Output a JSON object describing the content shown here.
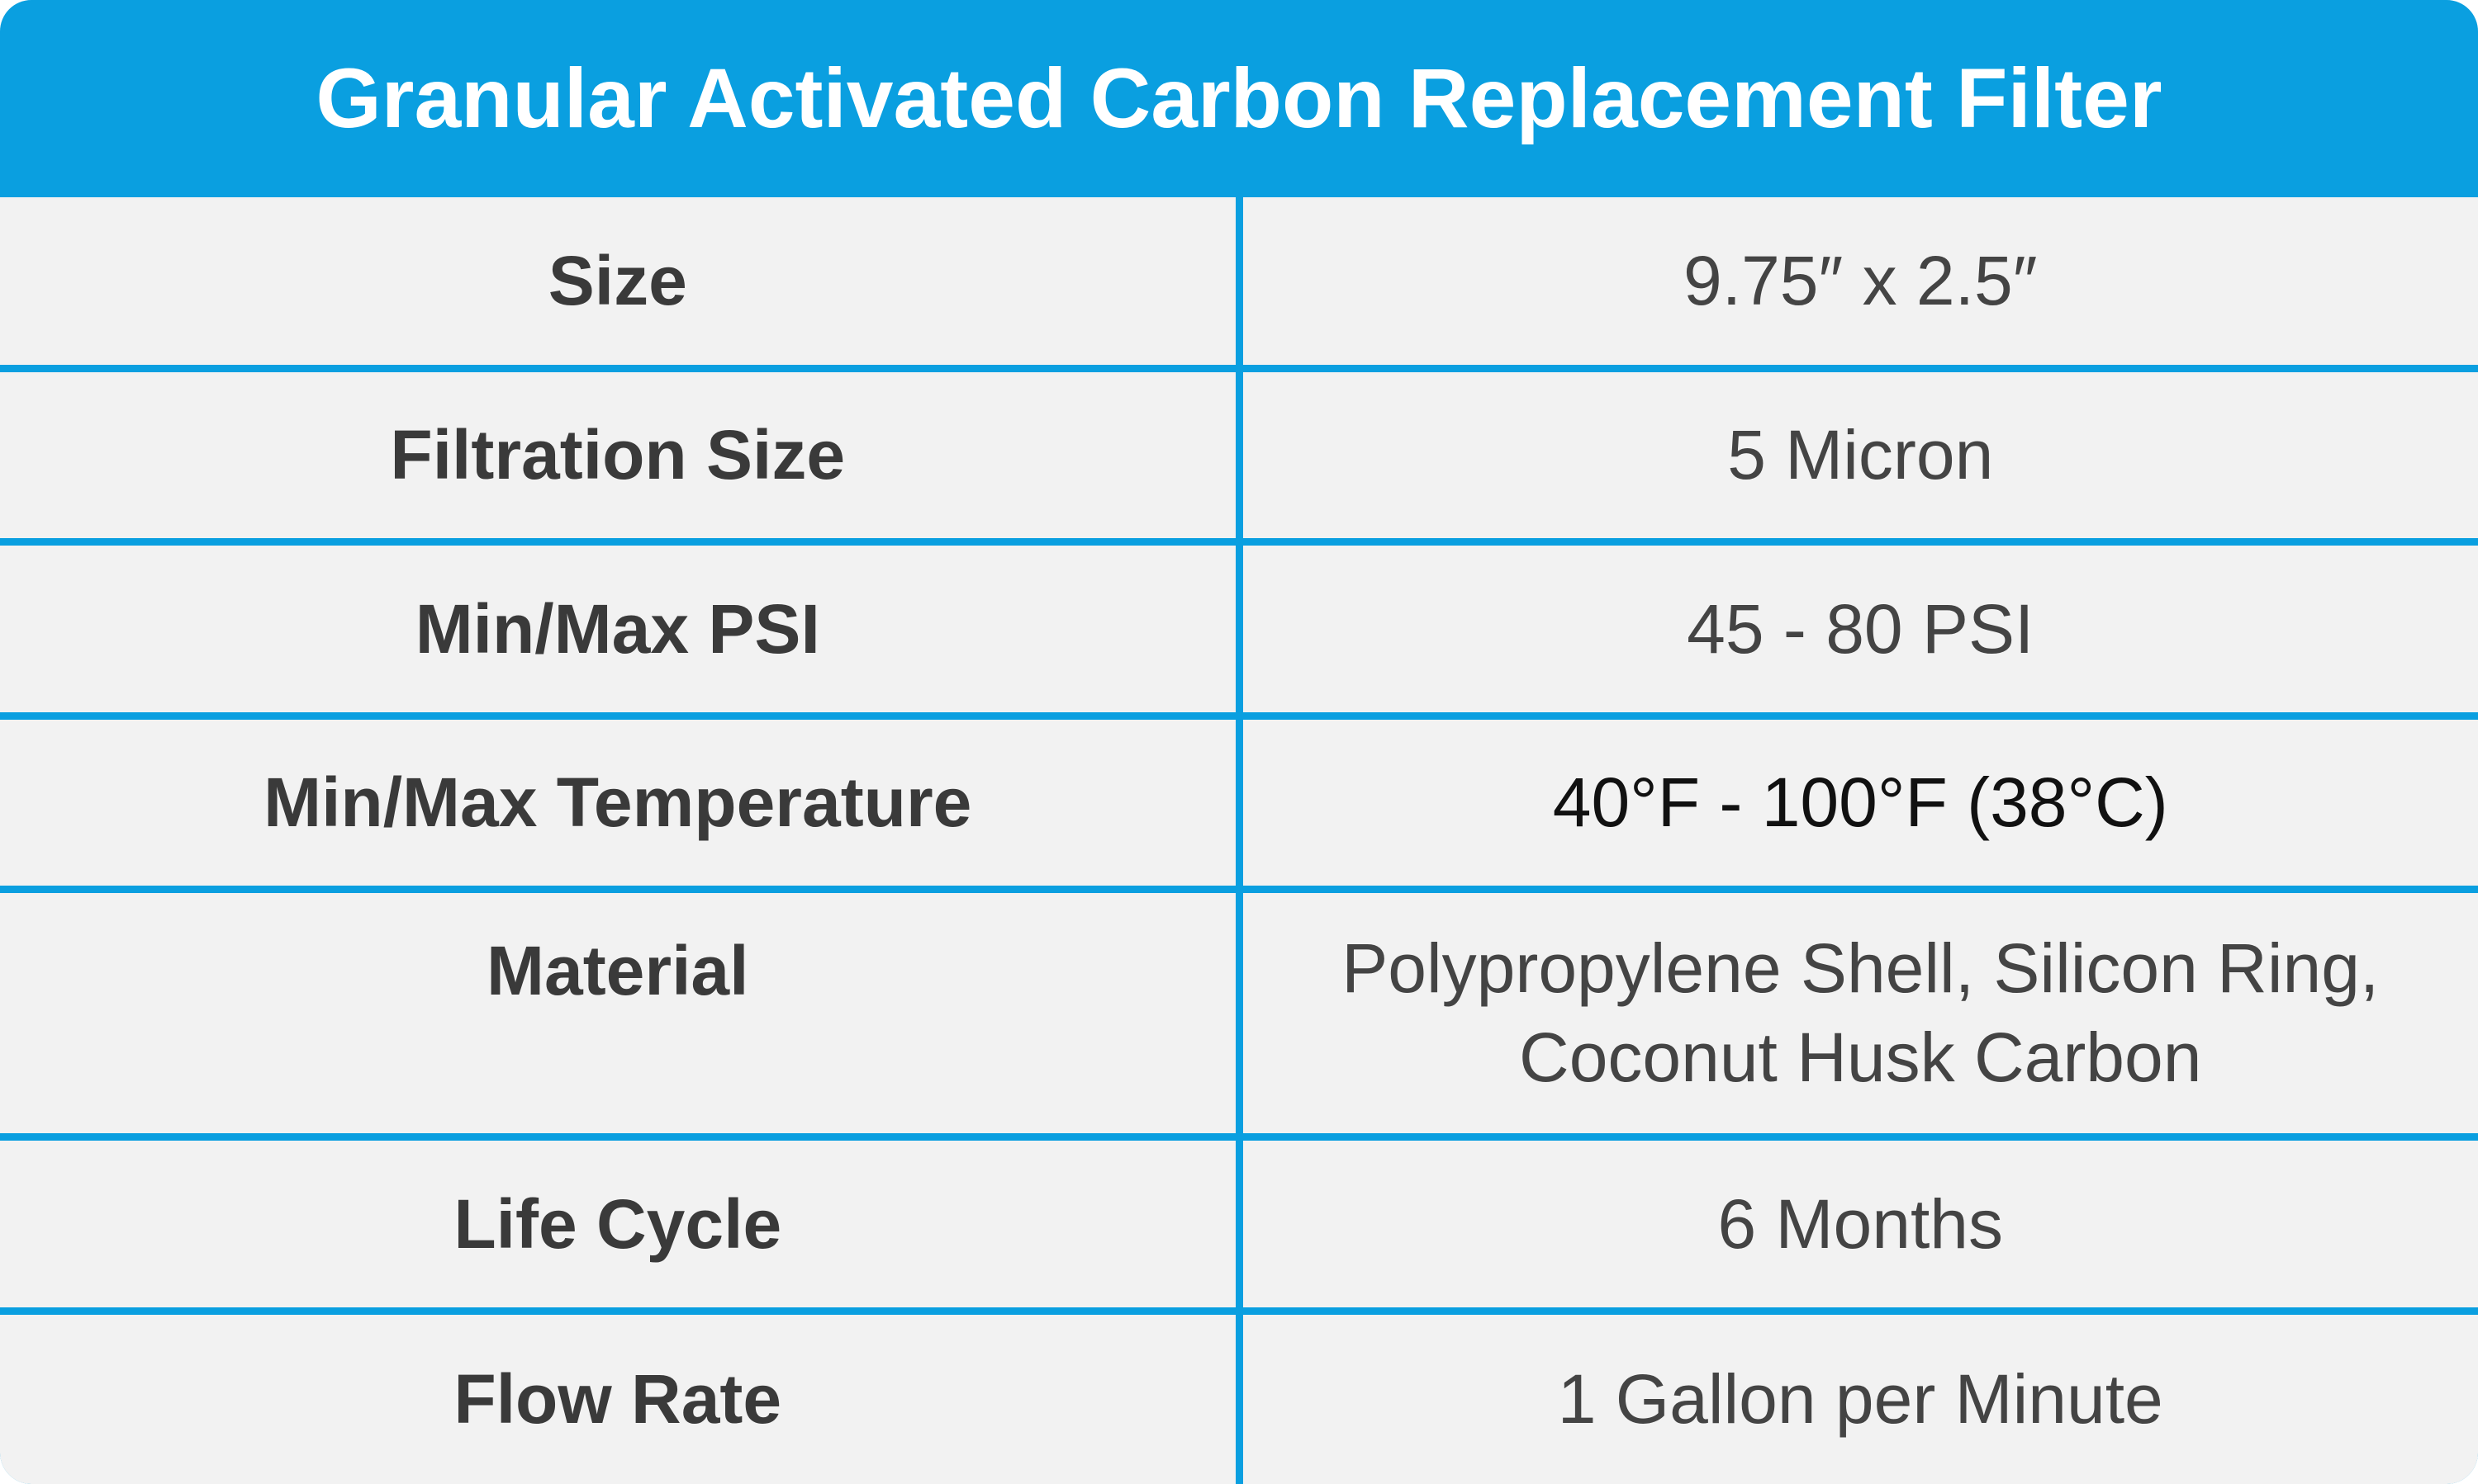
{
  "header": {
    "title": "Granular Activated Carbon Replacement Filter"
  },
  "table": {
    "rows": [
      {
        "label": "Size",
        "value": "9.75″ x 2.5″"
      },
      {
        "label": "Filtration Size",
        "value": "5 Micron"
      },
      {
        "label": "Min/Max PSI",
        "value": "45 - 80 PSI"
      },
      {
        "label": "Min/Max Temperature",
        "value": "40°F - 100°F (38°C)"
      },
      {
        "label": "Material",
        "value": "Polypropylene Shell, Silicon Ring, Coconut Husk Carbon"
      },
      {
        "label": "Life Cycle",
        "value": "6 Months"
      },
      {
        "label": "Flow Rate",
        "value": "1 Gallon per Minute"
      }
    ]
  }
}
